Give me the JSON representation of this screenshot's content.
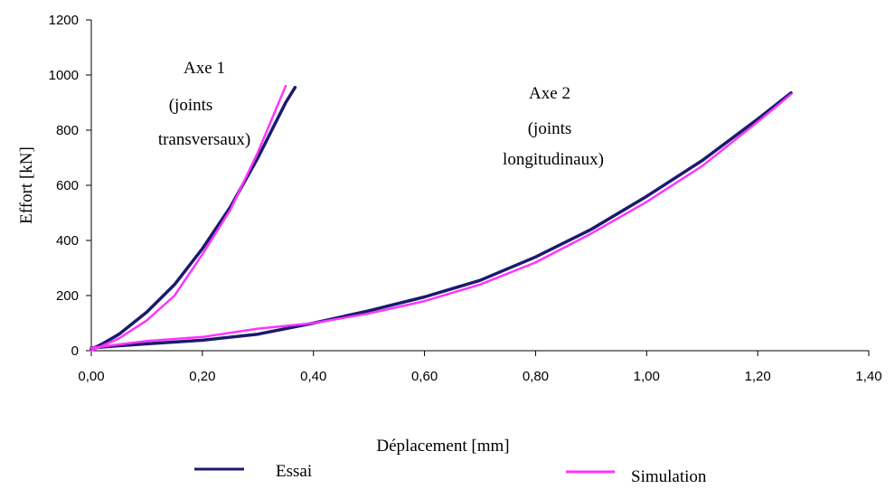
{
  "chart_data": {
    "type": "line",
    "xlabel": "Déplacement [mm]",
    "ylabel": "Effort [kN]",
    "xlim": [
      0,
      1.4
    ],
    "ylim": [
      0,
      1200
    ],
    "x_ticks": [
      "0,00",
      "0,20",
      "0,40",
      "0,60",
      "0,80",
      "1,00",
      "1,20",
      "1,40"
    ],
    "y_ticks": [
      "0",
      "200",
      "400",
      "600",
      "800",
      "1000",
      "1200"
    ],
    "grid": false,
    "legend_position": "bottom",
    "annotations": [
      {
        "lines": [
          "Axe 1",
          "(joints",
          "transversaux)"
        ]
      },
      {
        "lines": [
          "Axe 2",
          "(joints",
          "longitudinaux)"
        ]
      }
    ],
    "series": [
      {
        "name": "Essai",
        "color": "#1a1a6e",
        "values_axe1": [
          [
            0.0,
            5
          ],
          [
            0.02,
            25
          ],
          [
            0.05,
            60
          ],
          [
            0.1,
            140
          ],
          [
            0.15,
            240
          ],
          [
            0.2,
            370
          ],
          [
            0.25,
            520
          ],
          [
            0.3,
            700
          ],
          [
            0.33,
            820
          ],
          [
            0.35,
            900
          ],
          [
            0.367,
            955
          ]
        ],
        "values_axe2": [
          [
            0.0,
            10
          ],
          [
            0.05,
            18
          ],
          [
            0.1,
            25
          ],
          [
            0.2,
            38
          ],
          [
            0.3,
            60
          ],
          [
            0.4,
            100
          ],
          [
            0.5,
            145
          ],
          [
            0.6,
            195
          ],
          [
            0.7,
            255
          ],
          [
            0.8,
            340
          ],
          [
            0.9,
            440
          ],
          [
            1.0,
            560
          ],
          [
            1.1,
            690
          ],
          [
            1.2,
            840
          ],
          [
            1.26,
            935
          ]
        ]
      },
      {
        "name": "Simulation",
        "color": "#ff33ff",
        "values_axe1": [
          [
            0.0,
            0
          ],
          [
            0.05,
            45
          ],
          [
            0.1,
            110
          ],
          [
            0.15,
            200
          ],
          [
            0.2,
            350
          ],
          [
            0.25,
            510
          ],
          [
            0.3,
            720
          ],
          [
            0.35,
            960
          ]
        ],
        "values_axe2": [
          [
            0.0,
            10
          ],
          [
            0.1,
            35
          ],
          [
            0.2,
            50
          ],
          [
            0.3,
            80
          ],
          [
            0.4,
            100
          ],
          [
            0.5,
            135
          ],
          [
            0.6,
            180
          ],
          [
            0.7,
            240
          ],
          [
            0.8,
            320
          ],
          [
            0.9,
            425
          ],
          [
            1.0,
            540
          ],
          [
            1.1,
            670
          ],
          [
            1.2,
            830
          ],
          [
            1.26,
            930
          ]
        ]
      }
    ]
  }
}
